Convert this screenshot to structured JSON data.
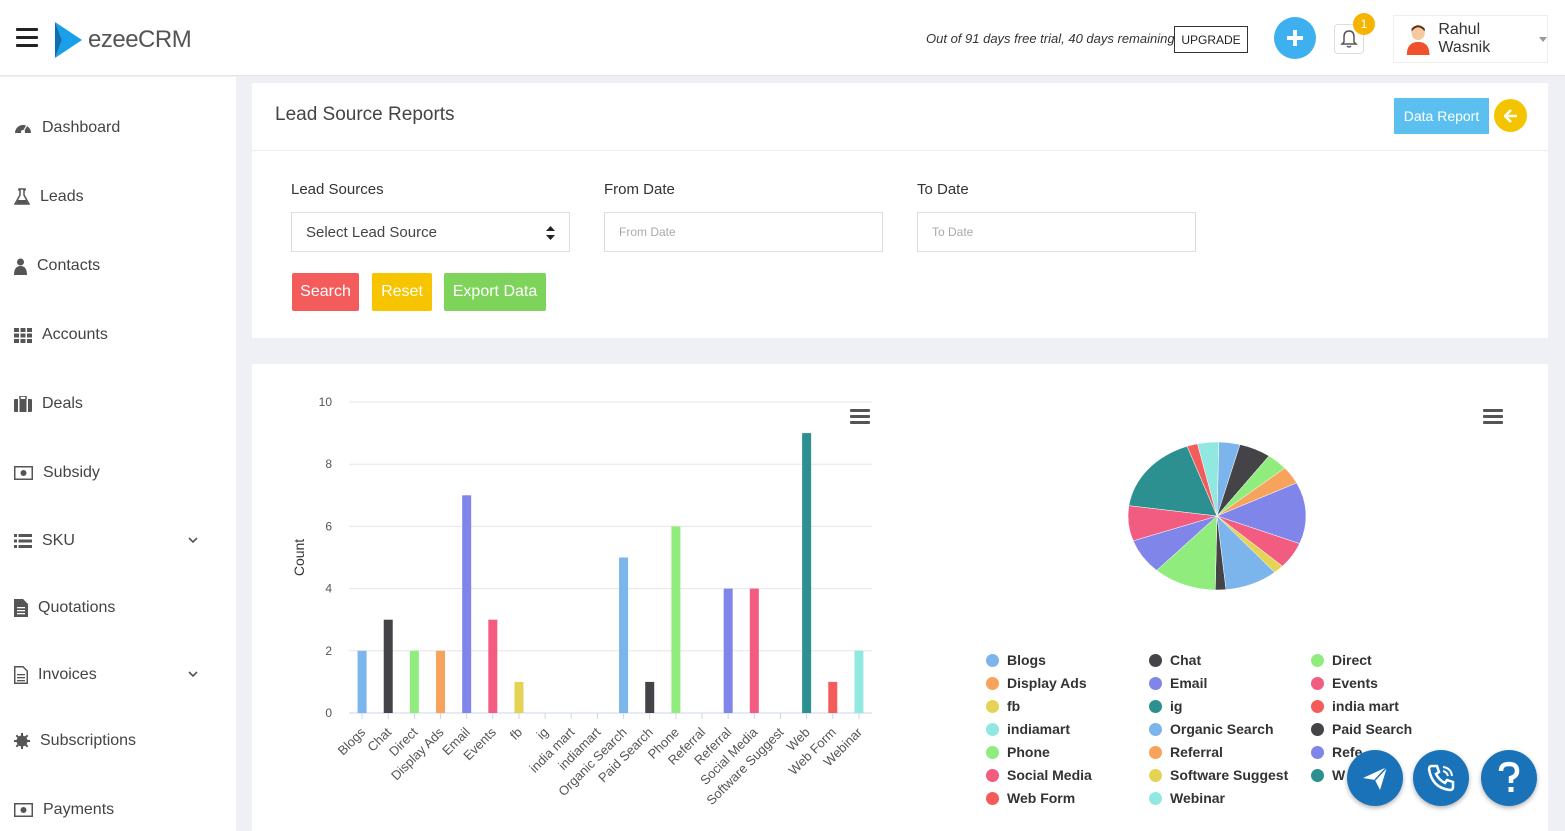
{
  "app": {
    "logo_text": "ezeeCRM"
  },
  "header": {
    "trial_text": "Out of 91 days free trial, 40 days remaining",
    "upgrade_label": "UPGRADE",
    "notification_count": "1",
    "user_name": "Rahul Wasnik"
  },
  "sidebar": {
    "items": [
      {
        "label": "Dashboard"
      },
      {
        "label": "Leads"
      },
      {
        "label": "Contacts"
      },
      {
        "label": "Accounts"
      },
      {
        "label": "Deals"
      },
      {
        "label": "Subsidy"
      },
      {
        "label": "SKU"
      },
      {
        "label": "Quotations"
      },
      {
        "label": "Invoices"
      },
      {
        "label": "Subscriptions"
      },
      {
        "label": "Payments"
      }
    ]
  },
  "report": {
    "title": "Lead Source Reports",
    "data_report_label": "Data Report",
    "lead_sources_label": "Lead Sources",
    "lead_source_value": "Select Lead Source",
    "from_date_label": "From Date",
    "from_date_placeholder": "From Date",
    "to_date_label": "To Date",
    "to_date_placeholder": "To Date",
    "search_label": "Search",
    "reset_label": "Reset",
    "export_label": "Export Data"
  },
  "colors": {
    "search": "#f45b5b",
    "reset": "#f7c400",
    "export": "#7ed35a"
  },
  "chart_data": [
    {
      "type": "bar",
      "title": "",
      "xlabel": "",
      "ylabel": "Count",
      "ylim": [
        0,
        10
      ],
      "yticks": [
        0,
        2,
        4,
        6,
        8,
        10
      ],
      "categories": [
        "Blogs",
        "Chat",
        "Direct",
        "Display Ads",
        "Email",
        "Events",
        "fb",
        "ig",
        "india mart",
        "indiamart",
        "Organic Search",
        "Paid Search",
        "Phone",
        "Referral",
        "Referral",
        "Social Media",
        "Software Suggest",
        "Web",
        "Web Form",
        "Webinar"
      ],
      "values": [
        2,
        3,
        2,
        2,
        7,
        3,
        1,
        0,
        0,
        0,
        5,
        1,
        6,
        0,
        4,
        4,
        0,
        9,
        1,
        2
      ],
      "colors": [
        "#7cb5ec",
        "#434348",
        "#90ed7d",
        "#f7a35c",
        "#8085e9",
        "#f15c80",
        "#e4d354",
        "#2b908f",
        "#f45b5b",
        "#91e8e1",
        "#7cb5ec",
        "#434348",
        "#90ed7d",
        "#f7a35c",
        "#8085e9",
        "#f15c80",
        "#e4d354",
        "#2b908f",
        "#f45b5b",
        "#91e8e1"
      ]
    },
    {
      "type": "pie",
      "title": "",
      "categories": [
        "Blogs",
        "Chat",
        "Direct",
        "Display Ads",
        "Email",
        "Events",
        "fb",
        "ig",
        "india mart",
        "indiamart",
        "Organic Search",
        "Paid Search",
        "Phone",
        "Referral",
        "Referral",
        "Social Media",
        "Software Suggest",
        "Web",
        "Web Form",
        "Webinar"
      ],
      "values": [
        2,
        3,
        2,
        2,
        7,
        3,
        1,
        0,
        0,
        0,
        5,
        1,
        6,
        0,
        4,
        4,
        0,
        9,
        1,
        2
      ],
      "colors": [
        "#7cb5ec",
        "#434348",
        "#90ed7d",
        "#f7a35c",
        "#8085e9",
        "#f15c80",
        "#e4d354",
        "#2b908f",
        "#f45b5b",
        "#91e8e1",
        "#7cb5ec",
        "#434348",
        "#90ed7d",
        "#f7a35c",
        "#8085e9",
        "#f15c80",
        "#e4d354",
        "#2b908f",
        "#f45b5b",
        "#91e8e1"
      ],
      "legend_labels": [
        "Blogs",
        "Chat",
        "Direct",
        "Display Ads",
        "Email",
        "Events",
        "fb",
        "ig",
        "india mart",
        "indiamart",
        "Organic Search",
        "Paid Search",
        "Phone",
        "Referral",
        "Refe",
        "Social Media",
        "Software Suggest",
        "W",
        "Web Form",
        "Webinar"
      ]
    }
  ]
}
